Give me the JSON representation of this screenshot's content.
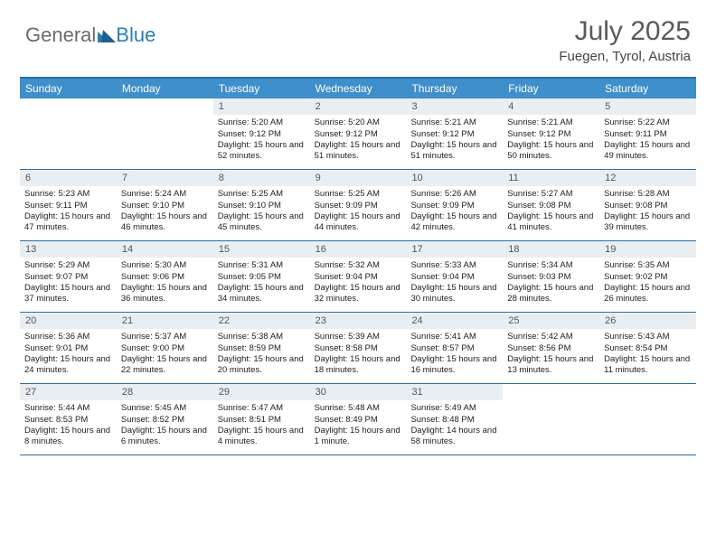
{
  "logo": {
    "text1": "General",
    "text2": "Blue"
  },
  "title": "July 2025",
  "location": "Fuegen, Tyrol, Austria",
  "colors": {
    "header_bg": "#3e8fcb",
    "border": "#2a6fa8",
    "daynum_bg": "#e9eef3",
    "logo_gray": "#6b6b6b",
    "logo_blue": "#2a7fba"
  },
  "weekdays": [
    "Sunday",
    "Monday",
    "Tuesday",
    "Wednesday",
    "Thursday",
    "Friday",
    "Saturday"
  ],
  "weeks": [
    [
      null,
      null,
      {
        "n": "1",
        "sr": "5:20 AM",
        "ss": "9:12 PM",
        "dl": "15 hours and 52 minutes."
      },
      {
        "n": "2",
        "sr": "5:20 AM",
        "ss": "9:12 PM",
        "dl": "15 hours and 51 minutes."
      },
      {
        "n": "3",
        "sr": "5:21 AM",
        "ss": "9:12 PM",
        "dl": "15 hours and 51 minutes."
      },
      {
        "n": "4",
        "sr": "5:21 AM",
        "ss": "9:12 PM",
        "dl": "15 hours and 50 minutes."
      },
      {
        "n": "5",
        "sr": "5:22 AM",
        "ss": "9:11 PM",
        "dl": "15 hours and 49 minutes."
      }
    ],
    [
      {
        "n": "6",
        "sr": "5:23 AM",
        "ss": "9:11 PM",
        "dl": "15 hours and 47 minutes."
      },
      {
        "n": "7",
        "sr": "5:24 AM",
        "ss": "9:10 PM",
        "dl": "15 hours and 46 minutes."
      },
      {
        "n": "8",
        "sr": "5:25 AM",
        "ss": "9:10 PM",
        "dl": "15 hours and 45 minutes."
      },
      {
        "n": "9",
        "sr": "5:25 AM",
        "ss": "9:09 PM",
        "dl": "15 hours and 44 minutes."
      },
      {
        "n": "10",
        "sr": "5:26 AM",
        "ss": "9:09 PM",
        "dl": "15 hours and 42 minutes."
      },
      {
        "n": "11",
        "sr": "5:27 AM",
        "ss": "9:08 PM",
        "dl": "15 hours and 41 minutes."
      },
      {
        "n": "12",
        "sr": "5:28 AM",
        "ss": "9:08 PM",
        "dl": "15 hours and 39 minutes."
      }
    ],
    [
      {
        "n": "13",
        "sr": "5:29 AM",
        "ss": "9:07 PM",
        "dl": "15 hours and 37 minutes."
      },
      {
        "n": "14",
        "sr": "5:30 AM",
        "ss": "9:06 PM",
        "dl": "15 hours and 36 minutes."
      },
      {
        "n": "15",
        "sr": "5:31 AM",
        "ss": "9:05 PM",
        "dl": "15 hours and 34 minutes."
      },
      {
        "n": "16",
        "sr": "5:32 AM",
        "ss": "9:04 PM",
        "dl": "15 hours and 32 minutes."
      },
      {
        "n": "17",
        "sr": "5:33 AM",
        "ss": "9:04 PM",
        "dl": "15 hours and 30 minutes."
      },
      {
        "n": "18",
        "sr": "5:34 AM",
        "ss": "9:03 PM",
        "dl": "15 hours and 28 minutes."
      },
      {
        "n": "19",
        "sr": "5:35 AM",
        "ss": "9:02 PM",
        "dl": "15 hours and 26 minutes."
      }
    ],
    [
      {
        "n": "20",
        "sr": "5:36 AM",
        "ss": "9:01 PM",
        "dl": "15 hours and 24 minutes."
      },
      {
        "n": "21",
        "sr": "5:37 AM",
        "ss": "9:00 PM",
        "dl": "15 hours and 22 minutes."
      },
      {
        "n": "22",
        "sr": "5:38 AM",
        "ss": "8:59 PM",
        "dl": "15 hours and 20 minutes."
      },
      {
        "n": "23",
        "sr": "5:39 AM",
        "ss": "8:58 PM",
        "dl": "15 hours and 18 minutes."
      },
      {
        "n": "24",
        "sr": "5:41 AM",
        "ss": "8:57 PM",
        "dl": "15 hours and 16 minutes."
      },
      {
        "n": "25",
        "sr": "5:42 AM",
        "ss": "8:56 PM",
        "dl": "15 hours and 13 minutes."
      },
      {
        "n": "26",
        "sr": "5:43 AM",
        "ss": "8:54 PM",
        "dl": "15 hours and 11 minutes."
      }
    ],
    [
      {
        "n": "27",
        "sr": "5:44 AM",
        "ss": "8:53 PM",
        "dl": "15 hours and 8 minutes."
      },
      {
        "n": "28",
        "sr": "5:45 AM",
        "ss": "8:52 PM",
        "dl": "15 hours and 6 minutes."
      },
      {
        "n": "29",
        "sr": "5:47 AM",
        "ss": "8:51 PM",
        "dl": "15 hours and 4 minutes."
      },
      {
        "n": "30",
        "sr": "5:48 AM",
        "ss": "8:49 PM",
        "dl": "15 hours and 1 minute."
      },
      {
        "n": "31",
        "sr": "5:49 AM",
        "ss": "8:48 PM",
        "dl": "14 hours and 58 minutes."
      },
      null,
      null
    ]
  ],
  "labels": {
    "sunrise": "Sunrise:",
    "sunset": "Sunset:",
    "daylight": "Daylight:"
  }
}
